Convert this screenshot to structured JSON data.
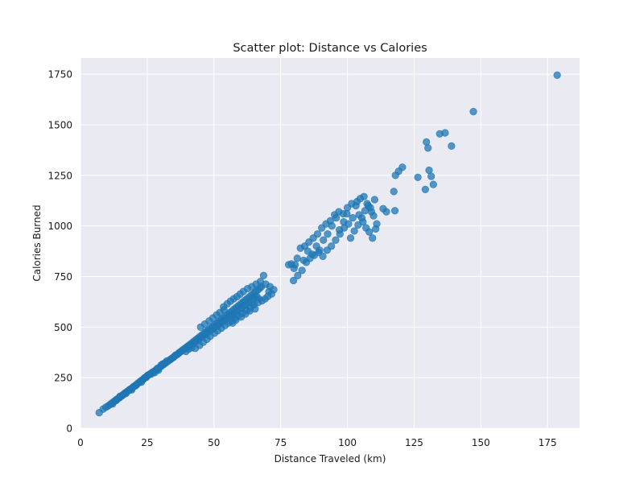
{
  "chart_data": {
    "type": "scatter",
    "title": "Scatter plot: Distance vs Calories",
    "xlabel": "Distance Traveled (km)",
    "ylabel": "Calories Burned",
    "xlim": [
      0,
      187
    ],
    "ylim": [
      0,
      1830
    ],
    "xticks": [
      0,
      25,
      50,
      75,
      100,
      125,
      150,
      175
    ],
    "yticks": [
      0,
      250,
      500,
      750,
      1000,
      1250,
      1500,
      1750
    ],
    "grid": true,
    "marker_color": "#1f77b4",
    "marker_alpha": 0.75,
    "background_color": "#eaeaf2",
    "grid_color": "#ffffff",
    "series": [
      {
        "points": [
          [
            7,
            77
          ],
          [
            8.5,
            95
          ],
          [
            9.5,
            104
          ],
          [
            10.3,
            110
          ],
          [
            11,
            117
          ],
          [
            11.7,
            124
          ],
          [
            12.3,
            130
          ],
          [
            12.8,
            134
          ],
          [
            13.2,
            139
          ],
          [
            13.6,
            143
          ],
          [
            14.1,
            147
          ],
          [
            14.6,
            151
          ],
          [
            15,
            156
          ],
          [
            15.5,
            160
          ],
          [
            15.9,
            165
          ],
          [
            16.3,
            170
          ],
          [
            16.8,
            175
          ],
          [
            17.2,
            178
          ],
          [
            17.6,
            183
          ],
          [
            18.1,
            187
          ],
          [
            18.5,
            192
          ],
          [
            19,
            195
          ],
          [
            19.4,
            200
          ],
          [
            19.9,
            206
          ],
          [
            20.3,
            209
          ],
          [
            20.8,
            214
          ],
          [
            21.3,
            220
          ],
          [
            21.7,
            224
          ],
          [
            22.2,
            229
          ],
          [
            22.6,
            234
          ],
          [
            23.1,
            238
          ],
          [
            23.6,
            243
          ],
          [
            24,
            249
          ],
          [
            24.5,
            253
          ],
          [
            25,
            258
          ],
          [
            25.6,
            264
          ],
          [
            26.2,
            270
          ],
          [
            26.9,
            276
          ],
          [
            27.6,
            282
          ],
          [
            28.3,
            288
          ],
          [
            29,
            294
          ],
          [
            29.7,
            302
          ],
          [
            30.4,
            308
          ],
          [
            31.2,
            316
          ],
          [
            32,
            323
          ],
          [
            32.8,
            331
          ],
          [
            33.6,
            339
          ],
          [
            34.4,
            347
          ],
          [
            35.2,
            355
          ],
          [
            36,
            363
          ],
          [
            36.8,
            371
          ],
          [
            37.6,
            379
          ],
          [
            38.4,
            388
          ],
          [
            39.2,
            396
          ],
          [
            40,
            404
          ],
          [
            40.8,
            412
          ],
          [
            41.6,
            420
          ],
          [
            42.4,
            429
          ],
          [
            43.2,
            437
          ],
          [
            44,
            445
          ],
          [
            44.8,
            454
          ],
          [
            45.6,
            462
          ],
          [
            46.4,
            470
          ],
          [
            47.2,
            479
          ],
          [
            48,
            487
          ],
          [
            48.8,
            495
          ],
          [
            49.6,
            504
          ],
          [
            50.4,
            512
          ],
          [
            51.2,
            521
          ],
          [
            52,
            529
          ],
          [
            52.8,
            538
          ],
          [
            53.6,
            546
          ],
          [
            54.4,
            555
          ],
          [
            55.2,
            563
          ],
          [
            56,
            572
          ],
          [
            56.8,
            580
          ],
          [
            57.6,
            589
          ],
          [
            58.4,
            597
          ],
          [
            59.2,
            606
          ],
          [
            60,
            614
          ],
          [
            60.8,
            623
          ],
          [
            61.6,
            632
          ],
          [
            62.4,
            640
          ],
          [
            63.2,
            649
          ],
          [
            64,
            657
          ],
          [
            64.8,
            666
          ],
          [
            65.6,
            675
          ],
          [
            66.4,
            683
          ],
          [
            67.2,
            692
          ],
          [
            12,
            120
          ],
          [
            14.8,
            158
          ],
          [
            17,
            172
          ],
          [
            19.2,
            190
          ],
          [
            21,
            215
          ],
          [
            22.8,
            228
          ],
          [
            24.6,
            251
          ],
          [
            26.5,
            268
          ],
          [
            27.8,
            275
          ],
          [
            29.2,
            287
          ],
          [
            30.8,
            318
          ],
          [
            32.4,
            333
          ],
          [
            33.9,
            342
          ],
          [
            35.6,
            361
          ],
          [
            37.1,
            375
          ],
          [
            38.8,
            391
          ],
          [
            39.5,
            380
          ],
          [
            40.6,
            392
          ],
          [
            41.2,
            410
          ],
          [
            42.8,
            425
          ],
          [
            43.6,
            430
          ],
          [
            44.4,
            440
          ],
          [
            45.2,
            448
          ],
          [
            46.2,
            459
          ],
          [
            47,
            466
          ],
          [
            47.6,
            472
          ],
          [
            48.4,
            480
          ],
          [
            49.2,
            488
          ],
          [
            50,
            497
          ],
          [
            50.8,
            503
          ],
          [
            51.6,
            510
          ],
          [
            52.4,
            520
          ],
          [
            53.2,
            526
          ],
          [
            54,
            533
          ],
          [
            54.8,
            541
          ],
          [
            55.6,
            550
          ],
          [
            56.4,
            558
          ],
          [
            57.2,
            565
          ],
          [
            58,
            572
          ],
          [
            58.8,
            579
          ],
          [
            59.6,
            588
          ],
          [
            60.4,
            596
          ],
          [
            61.2,
            604
          ],
          [
            62,
            612
          ],
          [
            63,
            620
          ],
          [
            64.4,
            636
          ],
          [
            65.2,
            645
          ],
          [
            66,
            652
          ],
          [
            43,
            395
          ],
          [
            44.6,
            410
          ],
          [
            46,
            425
          ],
          [
            47.4,
            440
          ],
          [
            48.6,
            455
          ],
          [
            50.2,
            470
          ],
          [
            51.4,
            482
          ],
          [
            52.8,
            495
          ],
          [
            54.2,
            508
          ],
          [
            55.4,
            520
          ],
          [
            56.6,
            530
          ],
          [
            57.8,
            542
          ],
          [
            59,
            555
          ],
          [
            60.6,
            568
          ],
          [
            62.2,
            582
          ],
          [
            63.6,
            596
          ],
          [
            65,
            610
          ],
          [
            66.6,
            622
          ],
          [
            68,
            630
          ],
          [
            69.2,
            640
          ],
          [
            70.2,
            652
          ],
          [
            71.6,
            664
          ],
          [
            67.8,
            700
          ],
          [
            69.4,
            712
          ],
          [
            71,
            700
          ],
          [
            68.6,
            755
          ],
          [
            72.4,
            685
          ],
          [
            70.6,
            675
          ],
          [
            66.8,
            640
          ],
          [
            64.2,
            618
          ],
          [
            13.4,
            138
          ],
          [
            16,
            166
          ],
          [
            18.4,
            190
          ],
          [
            20.6,
            210
          ],
          [
            23.4,
            240
          ],
          [
            25.2,
            262
          ],
          [
            27.2,
            278
          ],
          [
            28.8,
            296
          ],
          [
            30.2,
            312
          ],
          [
            31.8,
            325
          ],
          [
            34.8,
            350
          ],
          [
            36.4,
            366
          ],
          [
            38,
            383
          ],
          [
            39.8,
            400
          ],
          [
            41.6,
            398
          ],
          [
            42.2,
            416
          ],
          [
            53.6,
            600
          ],
          [
            55,
            615
          ],
          [
            56.2,
            628
          ],
          [
            57.4,
            640
          ],
          [
            58.6,
            650
          ],
          [
            59.8,
            663
          ],
          [
            61,
            676
          ],
          [
            62.6,
            690
          ],
          [
            64.2,
            700
          ],
          [
            65.8,
            712
          ],
          [
            67.4,
            725
          ],
          [
            45,
            500
          ],
          [
            46.6,
            515
          ],
          [
            48.2,
            530
          ],
          [
            49.6,
            545
          ],
          [
            51,
            560
          ],
          [
            52.2,
            572
          ],
          [
            53.8,
            585
          ],
          [
            57,
            520
          ],
          [
            58.2,
            535
          ],
          [
            60.2,
            550
          ],
          [
            61.8,
            565
          ],
          [
            63.4,
            580
          ],
          [
            65.4,
            590
          ],
          [
            79,
            812
          ],
          [
            80.4,
            808
          ],
          [
            81.2,
            840
          ],
          [
            83.6,
            830
          ],
          [
            85.2,
            875
          ],
          [
            86.8,
            860
          ],
          [
            88.4,
            900
          ],
          [
            89.6,
            880
          ],
          [
            91,
            930
          ],
          [
            92.6,
            960
          ],
          [
            94.2,
            1000
          ],
          [
            95.8,
            1040
          ],
          [
            97,
            980
          ],
          [
            98.6,
            1020
          ],
          [
            99.8,
            1060
          ],
          [
            101.2,
            940
          ],
          [
            102.6,
            975
          ],
          [
            104,
            1005
          ],
          [
            105.4,
            1040
          ],
          [
            106.6,
            1075
          ],
          [
            107.8,
            1100
          ],
          [
            109,
            1070
          ],
          [
            110.2,
            1130
          ],
          [
            103.6,
            1120
          ],
          [
            104.8,
            1135
          ],
          [
            106.2,
            1145
          ],
          [
            107.4,
            1110
          ],
          [
            108.6,
            1090
          ],
          [
            109.8,
            1050
          ],
          [
            111,
            1010
          ],
          [
            79.8,
            730
          ],
          [
            81.4,
            755
          ],
          [
            83,
            780
          ],
          [
            84.6,
            820
          ],
          [
            86,
            840
          ],
          [
            87.6,
            855
          ],
          [
            89.2,
            870
          ],
          [
            90.8,
            850
          ],
          [
            92.4,
            880
          ],
          [
            94,
            900
          ],
          [
            95.6,
            930
          ],
          [
            97.2,
            960
          ],
          [
            98.8,
            990
          ],
          [
            100.4,
            1010
          ],
          [
            102,
            1040
          ],
          [
            78,
            808
          ],
          [
            80,
            790
          ],
          [
            82.4,
            890
          ],
          [
            84,
            900
          ],
          [
            85.6,
            920
          ],
          [
            87.2,
            940
          ],
          [
            88.8,
            960
          ],
          [
            90.4,
            990
          ],
          [
            92,
            1010
          ],
          [
            93.6,
            1025
          ],
          [
            95.2,
            1055
          ],
          [
            96.8,
            1070
          ],
          [
            98.4,
            1060
          ],
          [
            100,
            1090
          ],
          [
            101.6,
            1110
          ],
          [
            103.2,
            1100
          ],
          [
            104.4,
            1055
          ],
          [
            105.8,
            1020
          ],
          [
            107,
            990
          ],
          [
            108.2,
            970
          ],
          [
            109.4,
            940
          ],
          [
            110.6,
            985
          ],
          [
            113.4,
            1085
          ],
          [
            114.6,
            1070
          ],
          [
            117.4,
            1170
          ],
          [
            117.8,
            1075
          ],
          [
            118,
            1250
          ],
          [
            119.2,
            1270
          ],
          [
            120.6,
            1290
          ],
          [
            126.4,
            1240
          ],
          [
            129.2,
            1180
          ],
          [
            129.6,
            1415
          ],
          [
            130.2,
            1385
          ],
          [
            130.6,
            1275
          ],
          [
            131.4,
            1245
          ],
          [
            132.2,
            1205
          ],
          [
            134.6,
            1455
          ],
          [
            136.6,
            1460
          ],
          [
            139,
            1395
          ],
          [
            147.2,
            1565
          ],
          [
            178.6,
            1745
          ]
        ]
      }
    ]
  }
}
